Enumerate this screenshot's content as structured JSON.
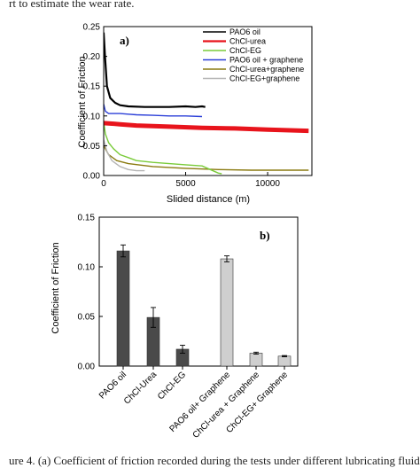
{
  "captions": {
    "top": "rt to estimate the wear rate.",
    "bottom": "ure 4. (a) Coefficient of friction recorded during the tests under different lubricating fluids"
  },
  "chart_data": [
    {
      "type": "line",
      "panel_label": "a)",
      "xlabel": "Slided distance (m)",
      "ylabel": "Coefficient of Friction",
      "xlim": [
        0,
        12700
      ],
      "ylim": [
        0,
        0.25
      ],
      "xticks": [
        0,
        5000,
        10000
      ],
      "yticks": [
        0.0,
        0.05,
        0.1,
        0.15,
        0.2,
        0.25
      ],
      "ytick_labels": [
        "0.00",
        "0.05",
        "0.10",
        "0.15",
        "0.20",
        "0.25"
      ],
      "legend_position": "top-right",
      "series": [
        {
          "name": "PAO6 oil",
          "color": "#000000",
          "x": [
            0,
            80,
            200,
            400,
            700,
            1000,
            1500,
            2500,
            4000,
            5000,
            5600,
            6000,
            6200
          ],
          "y": [
            0.24,
            0.2,
            0.15,
            0.13,
            0.122,
            0.118,
            0.116,
            0.115,
            0.115,
            0.116,
            0.115,
            0.116,
            0.115
          ]
        },
        {
          "name": "ChCl-urea",
          "color": "#e8141c",
          "x": [
            0,
            500,
            1000,
            2000,
            4000,
            6000,
            8000,
            10000,
            12500
          ],
          "y": [
            0.088,
            0.087,
            0.086,
            0.084,
            0.082,
            0.08,
            0.079,
            0.077,
            0.075
          ]
        },
        {
          "name": "ChCl-EG",
          "color": "#7acb3a",
          "x": [
            0,
            100,
            300,
            600,
            1000,
            1500,
            2000,
            3000,
            4000,
            5000,
            6000,
            6500,
            7000,
            7200
          ],
          "y": [
            0.09,
            0.07,
            0.055,
            0.045,
            0.035,
            0.03,
            0.025,
            0.022,
            0.02,
            0.018,
            0.016,
            0.01,
            0.004,
            0.003
          ]
        },
        {
          "name": "PAO6 oil + graphene",
          "color": "#2b3fd8",
          "x": [
            0,
            100,
            300,
            600,
            1000,
            1500,
            2000,
            3000,
            4000,
            5000,
            6000
          ],
          "y": [
            0.12,
            0.108,
            0.104,
            0.104,
            0.104,
            0.103,
            0.102,
            0.101,
            0.1,
            0.1,
            0.099
          ]
        },
        {
          "name": "ChCl-urea+graphene",
          "color": "#8a7a10",
          "x": [
            0,
            300,
            800,
            1500,
            3000,
            5000,
            7000,
            9000,
            10000,
            11000,
            12000,
            12500
          ],
          "y": [
            0.05,
            0.035,
            0.025,
            0.02,
            0.015,
            0.012,
            0.01,
            0.009,
            0.009,
            0.009,
            0.009,
            0.009
          ]
        },
        {
          "name": "ChCl-EG+graphene",
          "color": "#b4b4b4",
          "x": [
            0,
            200,
            500,
            1000,
            1500,
            2000,
            2500
          ],
          "y": [
            0.06,
            0.04,
            0.025,
            0.015,
            0.01,
            0.008,
            0.008
          ]
        }
      ]
    },
    {
      "type": "bar",
      "panel_label": "b)",
      "ylabel": "Coefficient of Friction",
      "ylim": [
        0,
        0.15
      ],
      "yticks": [
        0.0,
        0.05,
        0.1,
        0.15
      ],
      "ytick_labels": [
        "0.00",
        "0.05",
        "0.10",
        "0.15"
      ],
      "categories": [
        "PAO6 oil",
        "ChCl-Urea",
        "ChCl-EG",
        "PAO6 oil+ Graphene",
        "ChCl-urea + Graphene",
        "ChCl-EG+ Graphene"
      ],
      "values": [
        0.116,
        0.049,
        0.017,
        0.108,
        0.013,
        0.01
      ],
      "errors": [
        0.006,
        0.01,
        0.004,
        0.003,
        0.001,
        0.0006
      ],
      "colors": [
        "#4a4a4a",
        "#4a4a4a",
        "#4a4a4a",
        "#cfcfcf",
        "#cfcfcf",
        "#cfcfcf"
      ]
    }
  ]
}
